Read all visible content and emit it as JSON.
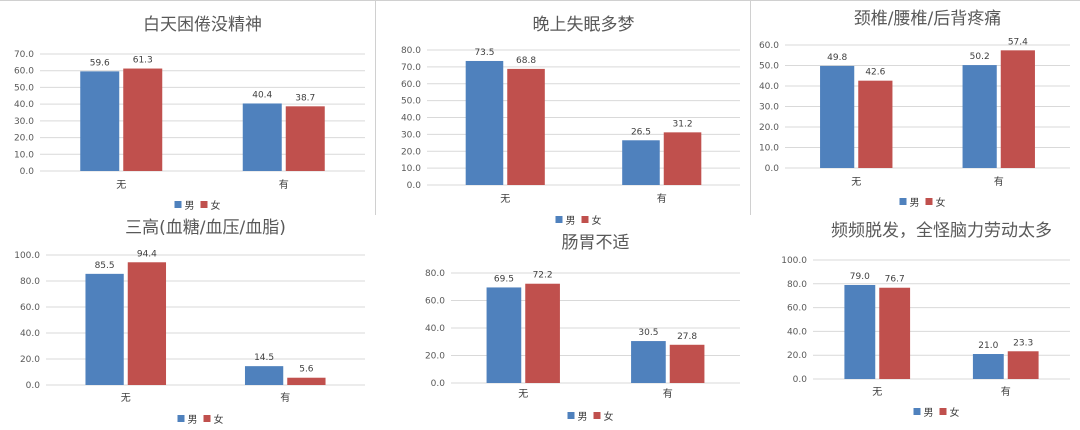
{
  "legend": [
    "男",
    "女"
  ],
  "colors": {
    "male": "#4f81bd",
    "female": "#c0504d"
  },
  "chart_data": [
    {
      "type": "bar",
      "title": "白天困倦没精神",
      "categories": [
        "无",
        "有"
      ],
      "series": [
        {
          "name": "男",
          "values": [
            59.6,
            40.4
          ]
        },
        {
          "name": "女",
          "values": [
            61.3,
            38.7
          ]
        }
      ],
      "ylim": [
        0,
        70
      ],
      "ticks": [
        "0.0",
        "10.0",
        "20.0",
        "30.0",
        "40.0",
        "50.0",
        "60.0",
        "70.0"
      ],
      "grid": true,
      "legend": "bottom"
    },
    {
      "type": "bar",
      "title": "晚上失眠多梦",
      "categories": [
        "无",
        "有"
      ],
      "series": [
        {
          "name": "男",
          "values": [
            73.5,
            26.5
          ]
        },
        {
          "name": "女",
          "values": [
            68.8,
            31.2
          ]
        }
      ],
      "ylim": [
        0,
        80
      ],
      "ticks": [
        "0.0",
        "10.0",
        "20.0",
        "30.0",
        "40.0",
        "50.0",
        "60.0",
        "70.0",
        "80.0"
      ],
      "grid": true,
      "legend": "bottom"
    },
    {
      "type": "bar",
      "title": "颈椎/腰椎/后背疼痛",
      "categories": [
        "无",
        "有"
      ],
      "series": [
        {
          "name": "男",
          "values": [
            49.8,
            50.2
          ]
        },
        {
          "name": "女",
          "values": [
            42.6,
            57.4
          ]
        }
      ],
      "ylim": [
        0,
        60
      ],
      "ticks": [
        "0.0",
        "10.0",
        "20.0",
        "30.0",
        "40.0",
        "50.0",
        "60.0"
      ],
      "grid": true,
      "legend": "bottom"
    },
    {
      "type": "bar",
      "title": "三高(血糖/血压/血脂)",
      "categories": [
        "无",
        "有"
      ],
      "series": [
        {
          "name": "男",
          "values": [
            85.5,
            14.5
          ]
        },
        {
          "name": "女",
          "values": [
            94.4,
            5.6
          ]
        }
      ],
      "ylim": [
        0,
        100
      ],
      "ticks": [
        "0.0",
        "20.0",
        "40.0",
        "60.0",
        "80.0",
        "100.0"
      ],
      "grid": true,
      "legend": "bottom"
    },
    {
      "type": "bar",
      "title": "肠胃不适",
      "categories": [
        "无",
        "有"
      ],
      "series": [
        {
          "name": "男",
          "values": [
            69.5,
            30.5
          ]
        },
        {
          "name": "女",
          "values": [
            72.2,
            27.8
          ]
        }
      ],
      "ylim": [
        0,
        80
      ],
      "ticks": [
        "0.0",
        "20.0",
        "40.0",
        "60.0",
        "80.0"
      ],
      "grid": true,
      "legend": "bottom"
    },
    {
      "type": "bar",
      "title": "频频脱发，全怪脑力劳动太多",
      "categories": [
        "无",
        "有"
      ],
      "series": [
        {
          "name": "男",
          "values": [
            79.0,
            21.0
          ]
        },
        {
          "name": "女",
          "values": [
            76.7,
            23.3
          ]
        }
      ],
      "ylim": [
        0,
        100
      ],
      "ticks": [
        "0.0",
        "20.0",
        "40.0",
        "60.0",
        "80.0",
        "100.0"
      ],
      "grid": true,
      "legend": "bottom"
    }
  ]
}
